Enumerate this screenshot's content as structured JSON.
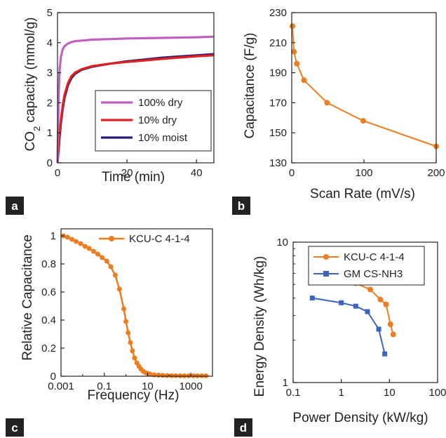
{
  "figure": {
    "panel_labels": [
      "a",
      "b",
      "c",
      "d"
    ],
    "colors": {
      "purple": "#c060c0",
      "red": "#e02020",
      "navy": "#22207a",
      "orange": "#f07c20",
      "blue": "#3a64c0"
    }
  },
  "chart_data": [
    {
      "panel": "a",
      "type": "line",
      "xlabel": "Time (min)",
      "ylabel_pre": "CO",
      "ylabel_sub": "2",
      "ylabel_post": " capacity (mmol/g)",
      "xlim": [
        0,
        45
      ],
      "ylim": [
        0,
        5
      ],
      "xticks": [
        "0",
        "20",
        "40"
      ],
      "xtick_values": [
        0,
        20,
        40
      ],
      "yticks": [
        "0",
        "1",
        "2",
        "3",
        "4",
        "5"
      ],
      "ytick_values": [
        0,
        1,
        2,
        3,
        4,
        5
      ],
      "legend_position": "lower-right",
      "series": [
        {
          "name": "100% dry",
          "color": "#c060c0",
          "x": [
            0,
            0.3,
            0.6,
            1,
            1.5,
            2,
            3,
            4,
            5,
            7,
            10,
            15,
            20,
            30,
            40,
            45
          ],
          "y": [
            0,
            2.2,
            3.1,
            3.55,
            3.78,
            3.88,
            3.97,
            4.02,
            4.05,
            4.07,
            4.1,
            4.12,
            4.14,
            4.16,
            4.18,
            4.2
          ]
        },
        {
          "name": "10% dry",
          "color": "#e02020",
          "x": [
            0,
            0.3,
            0.6,
            1,
            1.5,
            2,
            3,
            4,
            5,
            7,
            10,
            15,
            20,
            25,
            30,
            40,
            45
          ],
          "y": [
            0,
            0.5,
            0.95,
            1.45,
            1.9,
            2.25,
            2.65,
            2.88,
            3.0,
            3.12,
            3.22,
            3.3,
            3.36,
            3.41,
            3.46,
            3.55,
            3.58
          ]
        },
        {
          "name": "10% moist",
          "color": "#22207a",
          "x": [
            0,
            0.3,
            0.6,
            1,
            1.5,
            2,
            3,
            4,
            5,
            7,
            10,
            15,
            20,
            25,
            30,
            40,
            45
          ],
          "y": [
            0,
            0.4,
            0.85,
            1.35,
            1.8,
            2.15,
            2.58,
            2.82,
            2.96,
            3.1,
            3.2,
            3.3,
            3.38,
            3.44,
            3.5,
            3.58,
            3.62
          ]
        }
      ]
    },
    {
      "panel": "b",
      "type": "line",
      "xlabel": "Scan Rate (mV/s)",
      "ylabel": "Capacitance (F/g)",
      "xlim": [
        0,
        200
      ],
      "ylim": [
        130,
        230
      ],
      "xticks": [
        "0",
        "100",
        "200"
      ],
      "xtick_values": [
        0,
        100,
        200
      ],
      "yticks": [
        "130",
        "150",
        "170",
        "190",
        "210",
        "230"
      ],
      "ytick_values": [
        130,
        150,
        170,
        190,
        210,
        230
      ],
      "series": [
        {
          "name": "",
          "color": "#f07c20",
          "x": [
            1,
            3,
            7,
            17,
            49,
            99,
            200
          ],
          "y": [
            221,
            204,
            196,
            185,
            170,
            158,
            141
          ]
        }
      ]
    },
    {
      "panel": "c",
      "type": "line",
      "xlabel": "Frequency (Hz)",
      "ylabel": "Relative Capacitance",
      "xscale": "log",
      "xlim": [
        0.001,
        10000
      ],
      "ylim": [
        0,
        1.05
      ],
      "xticks": [
        "0.001",
        "0.1",
        "10",
        "1000"
      ],
      "xtick_values": [
        0.001,
        0.1,
        10,
        1000
      ],
      "yticks": [
        "0",
        "0.2",
        "0.4",
        "0.6",
        "0.8",
        "1"
      ],
      "ytick_values": [
        0,
        0.2,
        0.4,
        0.6,
        0.8,
        1
      ],
      "legend_position": "top-right",
      "series": [
        {
          "name": "KCU-C 4-1-4",
          "color": "#f07c20",
          "x": [
            0.0013,
            0.002,
            0.0032,
            0.005,
            0.008,
            0.013,
            0.02,
            0.032,
            0.05,
            0.08,
            0.13,
            0.2,
            0.32,
            0.5,
            0.8,
            1.0,
            1.26,
            1.6,
            2.0,
            2.5,
            3.2,
            4.0,
            5.0,
            6.3,
            8.0,
            10,
            13,
            20,
            32,
            50,
            80,
            130,
            200,
            320,
            500,
            800,
            1300,
            2000,
            3200,
            5000
          ],
          "y": [
            1.0,
            0.99,
            0.975,
            0.96,
            0.945,
            0.925,
            0.91,
            0.89,
            0.87,
            0.845,
            0.82,
            0.78,
            0.72,
            0.62,
            0.48,
            0.39,
            0.31,
            0.24,
            0.18,
            0.13,
            0.095,
            0.07,
            0.05,
            0.035,
            0.025,
            0.02,
            0.015,
            0.01,
            0.008,
            0.006,
            0.005,
            0.004,
            0.004,
            0.003,
            0.003,
            0.003,
            0.003,
            0.003,
            0.003,
            0.003
          ]
        }
      ]
    },
    {
      "panel": "d",
      "type": "line",
      "xlabel": "Power Density (kW/kg)",
      "ylabel": "Energy Density (Wh/kg)",
      "xscale": "log",
      "yscale": "log",
      "xlim": [
        0.1,
        100
      ],
      "ylim": [
        1,
        10
      ],
      "xticks": [
        "0.1",
        "1",
        "10",
        "100"
      ],
      "xtick_values": [
        0.1,
        1,
        10,
        100
      ],
      "yticks": [
        "1",
        "10"
      ],
      "ytick_values": [
        1,
        10
      ],
      "legend_position": "top-right",
      "series": [
        {
          "name": "KCU-C 4-1-4",
          "color": "#f07c20",
          "marker": "circle",
          "x": [
            0.25,
            0.5,
            1.0,
            2.0,
            4.0,
            6.5,
            8.5,
            10.5,
            12.0
          ],
          "y": [
            6.1,
            5.8,
            5.5,
            5.1,
            4.6,
            3.9,
            3.6,
            2.6,
            2.2
          ]
        },
        {
          "name": "GM CS-NH3",
          "color": "#3a64c0",
          "marker": "square",
          "x": [
            0.25,
            1.0,
            2.0,
            3.5,
            6.0,
            8.0
          ],
          "y": [
            4.0,
            3.7,
            3.5,
            3.2,
            2.4,
            1.6
          ]
        }
      ]
    }
  ]
}
